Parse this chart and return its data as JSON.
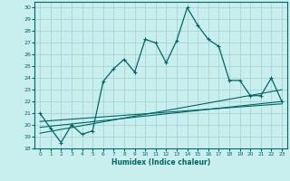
{
  "xlabel": "Humidex (Indice chaleur)",
  "bg_color": "#c8eeee",
  "grid_color": "#aad4d4",
  "line_color": "#006666",
  "xlim": [
    -0.5,
    23.5
  ],
  "ylim": [
    18,
    30.5
  ],
  "yticks": [
    18,
    19,
    20,
    21,
    22,
    23,
    24,
    25,
    26,
    27,
    28,
    29,
    30
  ],
  "xticks": [
    0,
    1,
    2,
    3,
    4,
    5,
    6,
    7,
    8,
    9,
    10,
    11,
    12,
    13,
    14,
    15,
    16,
    17,
    18,
    19,
    20,
    21,
    22,
    23
  ],
  "series1_x": [
    0,
    1,
    2,
    3,
    4,
    5,
    6,
    7,
    8,
    9,
    10,
    11,
    12,
    13,
    14,
    15,
    16,
    17,
    18,
    19,
    20,
    21,
    22,
    23
  ],
  "series1_y": [
    21.0,
    19.7,
    18.5,
    20.0,
    19.2,
    19.5,
    23.7,
    24.8,
    25.6,
    24.5,
    27.3,
    27.0,
    25.3,
    27.2,
    30.0,
    28.5,
    27.3,
    26.7,
    23.8,
    23.8,
    22.5,
    22.5,
    24.0,
    22.0
  ],
  "line2_x": [
    0,
    23
  ],
  "line2_y": [
    19.3,
    23.0
  ],
  "line3_x": [
    0,
    23
  ],
  "line3_y": [
    19.8,
    22.0
  ],
  "line4_x": [
    0,
    23
  ],
  "line4_y": [
    20.3,
    21.8
  ]
}
